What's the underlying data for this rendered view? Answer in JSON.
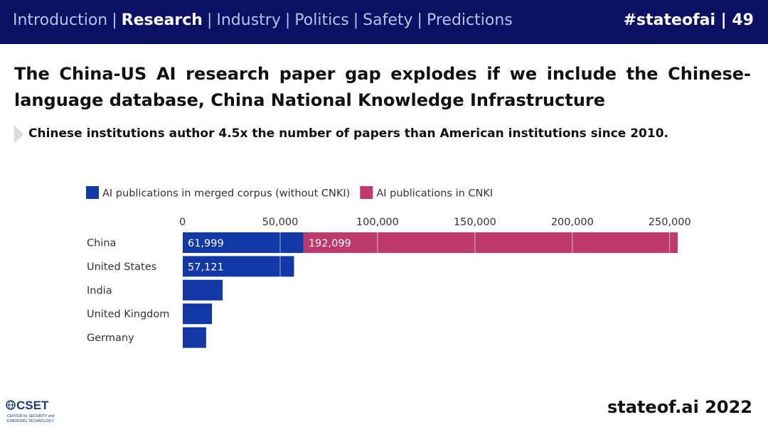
{
  "header": {
    "nav": [
      {
        "label": "Introduction",
        "active": false
      },
      {
        "label": "Research",
        "active": true
      },
      {
        "label": "Industry",
        "active": false
      },
      {
        "label": "Politics",
        "active": false
      },
      {
        "label": "Safety",
        "active": false
      },
      {
        "label": "Predictions",
        "active": false
      }
    ],
    "separator": "|",
    "tag": "#stateofai | 49"
  },
  "slide": {
    "title": "The China-US AI research paper gap explodes if we include the Chinese-language database, China National Knowledge Infrastructure",
    "subtitle": "Chinese institutions author 4.5x the number of papers than American institutions since 2010."
  },
  "chart_data": {
    "type": "bar",
    "orientation": "horizontal",
    "stacked": true,
    "categories": [
      "China",
      "United States",
      "India",
      "United Kingdom",
      "Germany"
    ],
    "series": [
      {
        "name": "AI publications in merged corpus (without CNKI)",
        "color": "#1238a8",
        "values": [
          61999,
          57121,
          20500,
          15000,
          12000
        ],
        "labels": [
          "61,999",
          "57,121",
          "",
          "",
          ""
        ]
      },
      {
        "name": "AI publications in CNKI",
        "color": "#bf3a6c",
        "values": [
          192099,
          0,
          0,
          0,
          0
        ],
        "labels": [
          "192,099",
          "",
          "",
          "",
          ""
        ]
      }
    ],
    "ticks": [
      0,
      50000,
      100000,
      150000,
      200000,
      250000
    ],
    "tick_labels": [
      "0",
      "50,000",
      "100,000",
      "150,000",
      "200,000",
      "250,000"
    ],
    "xlim": [
      0,
      254098
    ],
    "legend_position": "top-left"
  },
  "footer": {
    "logo_text": "CSET",
    "logo_subtext": [
      "CENTER for SECURITY and",
      "EMERGING TECHNOLOGY"
    ],
    "brand": "stateof.ai 2022"
  },
  "colors": {
    "header_bg": "#0a1163",
    "nav_inactive": "#b9c1ea",
    "bar_blue": "#1238a8",
    "bar_pink": "#bf3a6c"
  }
}
